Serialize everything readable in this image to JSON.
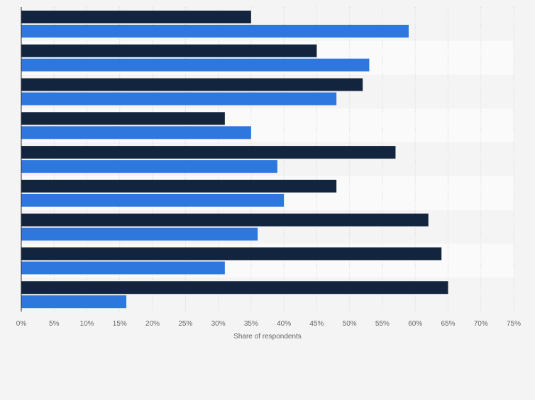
{
  "chart_data": {
    "type": "bar",
    "orientation": "horizontal",
    "title": "",
    "xlabel": "Share of respondents",
    "ylabel": "",
    "xlim": [
      0,
      75
    ],
    "x_ticks": [
      "0%",
      "5%",
      "10%",
      "15%",
      "20%",
      "25%",
      "30%",
      "35%",
      "40%",
      "45%",
      "50%",
      "55%",
      "60%",
      "65%",
      "70%",
      "75%"
    ],
    "grid": "vertical",
    "legend": "none",
    "categories": [
      "",
      "",
      "",
      "",
      "",
      "",
      "",
      "",
      ""
    ],
    "series": [
      {
        "color": "#13253e",
        "values": [
          35,
          45,
          52,
          31,
          57,
          48,
          62,
          64,
          65
        ]
      },
      {
        "color": "#2d77dd",
        "values": [
          59,
          53,
          48,
          35,
          39,
          40,
          36,
          31,
          16
        ]
      }
    ]
  }
}
